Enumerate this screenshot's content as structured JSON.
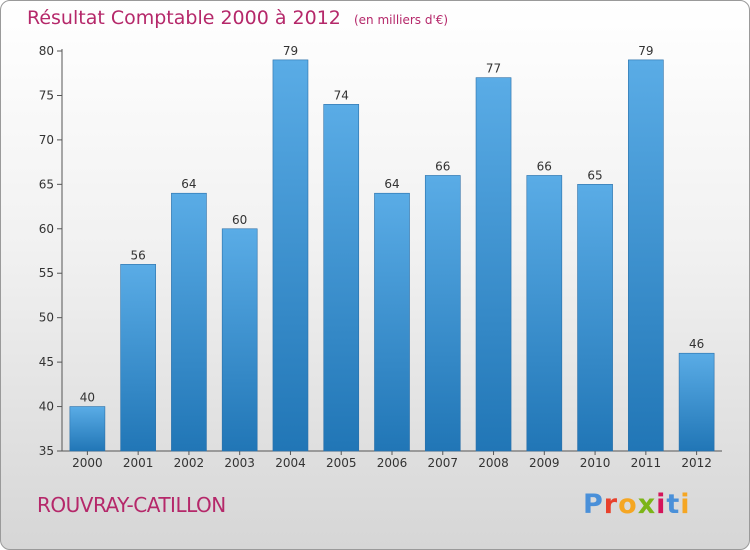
{
  "title": "Résultat Comptable 2000 à 2012",
  "unit_note": "(en milliers d'€)",
  "commune": "ROUVRAY-CATILLON",
  "logo": {
    "text": "Proxiti",
    "letter_colors": [
      "#4a90d9",
      "#e8412c",
      "#f5a623",
      "#7cb518",
      "#d4145a",
      "#4a90d9",
      "#f5a623"
    ]
  },
  "colors": {
    "title": "#b5286a",
    "bar_top": "#5aace6",
    "bar_bottom": "#2176b6",
    "axis": "#555555"
  },
  "chart_data": {
    "type": "bar",
    "title": "Résultat Comptable 2000 à 2012",
    "subtitle": "(en milliers d'€)",
    "categories": [
      "2000",
      "2001",
      "2002",
      "2003",
      "2004",
      "2005",
      "2006",
      "2007",
      "2008",
      "2009",
      "2010",
      "2011",
      "2012"
    ],
    "values": [
      40,
      56,
      64,
      60,
      79,
      74,
      64,
      66,
      77,
      66,
      65,
      79,
      46
    ],
    "ylim": [
      35,
      80
    ],
    "yticks": [
      35,
      40,
      45,
      50,
      55,
      60,
      65,
      70,
      75,
      80
    ],
    "grid": false,
    "xlabel": "",
    "ylabel": ""
  }
}
